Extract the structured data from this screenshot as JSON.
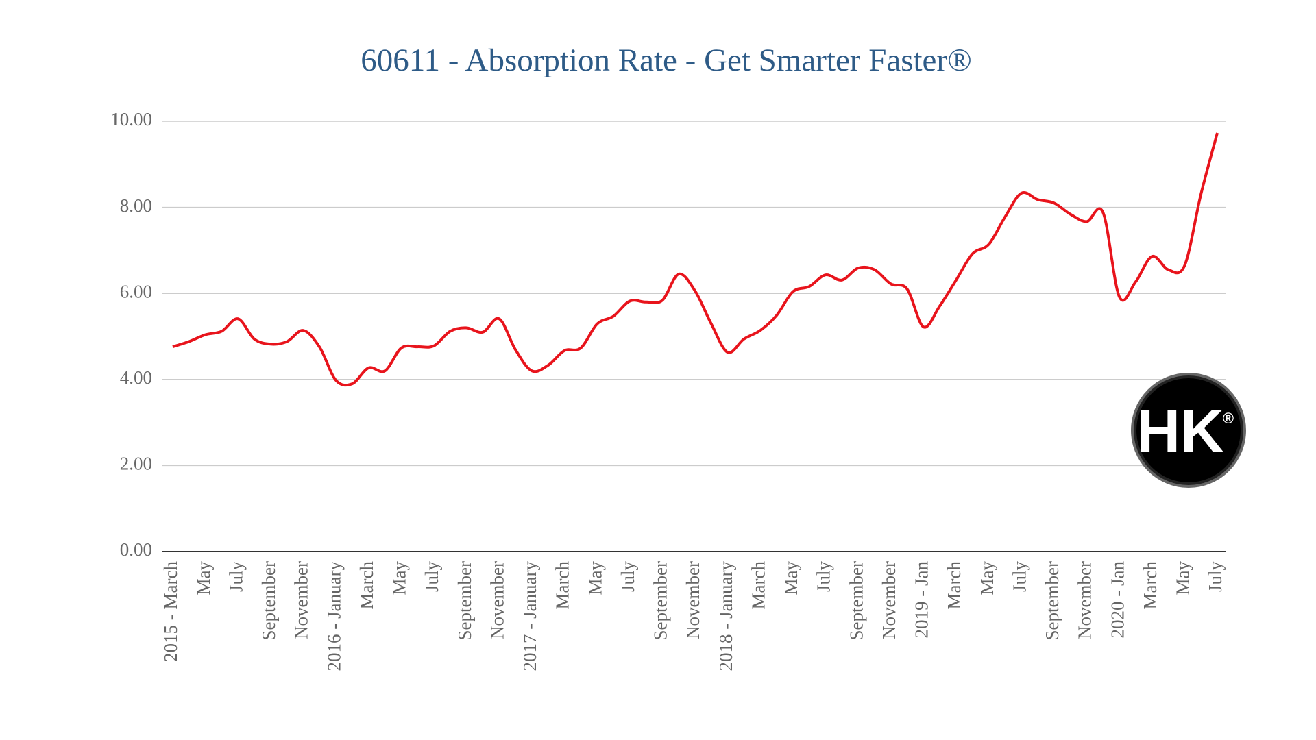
{
  "chart_data": {
    "type": "line",
    "title": "60611 - Absorption Rate - Get Smarter Faster®",
    "categories": [
      "2015 - March",
      null,
      "May",
      null,
      "July",
      null,
      "September",
      null,
      "November",
      null,
      "2016 - January",
      null,
      "March",
      null,
      "May",
      null,
      "July",
      null,
      "September",
      null,
      "November",
      null,
      "2017 - January",
      null,
      "March",
      null,
      "May",
      null,
      "July",
      null,
      "September",
      null,
      "November",
      null,
      "2018 - January",
      null,
      "March",
      null,
      "May",
      null,
      "July",
      null,
      "September",
      null,
      "November",
      null,
      "2019 - Jan",
      null,
      "March",
      null,
      "May",
      null,
      "July",
      null,
      "September",
      null,
      "November",
      null,
      "2020 - Jan",
      null,
      "March",
      null,
      "May",
      null,
      "July"
    ],
    "series": [
      {
        "name": "Absorption Rate",
        "color": "#e8141c",
        "values": [
          4.76,
          4.88,
          5.04,
          5.12,
          5.41,
          4.94,
          4.82,
          4.88,
          5.14,
          4.75,
          3.98,
          3.9,
          4.27,
          4.2,
          4.73,
          4.76,
          4.78,
          5.12,
          5.2,
          5.1,
          5.41,
          4.69,
          4.2,
          4.33,
          4.67,
          4.73,
          5.29,
          5.47,
          5.82,
          5.8,
          5.84,
          6.45,
          6.06,
          5.29,
          4.63,
          4.94,
          5.14,
          5.49,
          6.04,
          6.16,
          6.43,
          6.31,
          6.59,
          6.55,
          6.22,
          6.1,
          5.22,
          5.71,
          6.31,
          6.92,
          7.14,
          7.78,
          8.33,
          8.18,
          8.1,
          7.84,
          7.67,
          7.88,
          5.92,
          6.27,
          6.86,
          6.55,
          6.65,
          8.31,
          9.73
        ]
      }
    ],
    "ylim": [
      0,
      10
    ],
    "yticks": [
      {
        "value": 0,
        "label": "0.00"
      },
      {
        "value": 2,
        "label": "2.00"
      },
      {
        "value": 4,
        "label": "4.00"
      },
      {
        "value": 6,
        "label": "6.00"
      },
      {
        "value": 8,
        "label": "8.00"
      },
      {
        "value": 10,
        "label": "10.00"
      }
    ],
    "grid": true
  },
  "logo": {
    "text": "HK",
    "mark": "®"
  }
}
